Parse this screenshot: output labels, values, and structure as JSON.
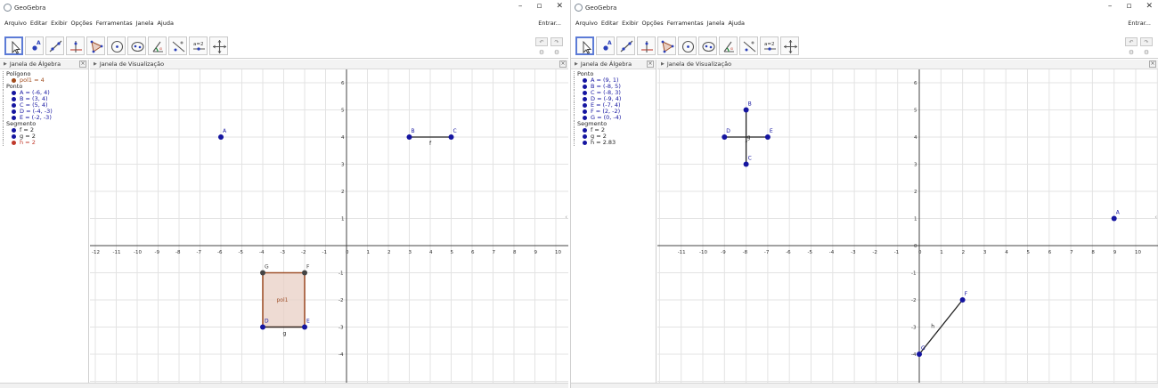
{
  "app_title": "GeoGebra",
  "window_controls": [
    "–",
    "▫",
    "✕"
  ],
  "menu": [
    "Arquivo",
    "Editar",
    "Exibir",
    "Opções",
    "Ferramentas",
    "Janela",
    "Ajuda"
  ],
  "signin": "Entrar...",
  "tools": [
    "move-tool",
    "point-tool",
    "line-tool",
    "perpendicular-tool",
    "polygon-tool",
    "circle-tool",
    "conic-tool",
    "angle-tool",
    "reflect-tool",
    "slider-tool",
    "move-graphics-tool"
  ],
  "slider_tool_label": "a=2",
  "undo_icons": [
    "undo-icon",
    "redo-icon",
    "settings-icon",
    "settings-icon"
  ],
  "left": {
    "algebra_title": "Janela de Álgebra",
    "graphics_title": "Janela de Visualização",
    "groups": [
      {
        "name": "Polígono",
        "items": [
          {
            "text": "pol1 = 4",
            "color": "#a04a1a"
          }
        ]
      },
      {
        "name": "Ponto",
        "items": [
          {
            "text": "A = (-6, 4)",
            "color": "#1515a0"
          },
          {
            "text": "B = (3, 4)",
            "color": "#1515a0"
          },
          {
            "text": "C = (5, 4)",
            "color": "#1515a0"
          },
          {
            "text": "D = (-4, -3)",
            "color": "#1515a0"
          },
          {
            "text": "E = (-2, -3)",
            "color": "#1515a0"
          }
        ]
      },
      {
        "name": "Segmento",
        "items": [
          {
            "text": "f = 2",
            "color": "#222222"
          },
          {
            "text": "g = 2",
            "color": "#222222"
          },
          {
            "text": "h = 2",
            "color": "#c0392b"
          }
        ]
      }
    ],
    "x_ticks": [
      "-12",
      "-11",
      "-10",
      "-9",
      "-8",
      "-7",
      "-6",
      "-5",
      "-4",
      "-3",
      "-2",
      "-1",
      "0",
      "1",
      "2",
      "3",
      "4",
      "5",
      "6",
      "7",
      "8",
      "9",
      "10"
    ],
    "y_ticks": [
      "6",
      "5",
      "4",
      "3",
      "2",
      "1",
      "-1",
      "-2",
      "-3",
      "-4"
    ],
    "points": [
      {
        "label": "A",
        "x": -6,
        "y": 4,
        "fill": "#1515a0"
      },
      {
        "label": "B",
        "x": 3,
        "y": 4,
        "fill": "#1515a0"
      },
      {
        "label": "C",
        "x": 5,
        "y": 4,
        "fill": "#1515a0"
      },
      {
        "label": "D",
        "x": -4,
        "y": -3,
        "fill": "#1515a0"
      },
      {
        "label": "E",
        "x": -2,
        "y": -3,
        "fill": "#1515a0"
      },
      {
        "label": "G",
        "x": -4,
        "y": -1,
        "fill": "#444444"
      },
      {
        "label": "F",
        "x": -2,
        "y": -1,
        "fill": "#444444"
      }
    ],
    "segments": [
      {
        "label": "f",
        "from": [
          3,
          4
        ],
        "to": [
          5,
          4
        ]
      },
      {
        "label": "g",
        "from": [
          -4,
          -3
        ],
        "to": [
          -2,
          -3
        ]
      }
    ],
    "polygon": {
      "label": "pol1",
      "vertices": [
        [
          -4,
          -1
        ],
        [
          -2,
          -1
        ],
        [
          -2,
          -3
        ],
        [
          -4,
          -3
        ]
      ],
      "stroke": "#a0522d",
      "fill": "#e8cfc4"
    }
  },
  "right": {
    "algebra_title": "Janela de Álgebra",
    "graphics_title": "Janela de Visualização",
    "groups": [
      {
        "name": "Ponto",
        "items": [
          {
            "text": "A = (9, 1)",
            "color": "#1515a0"
          },
          {
            "text": "B = (-8, 5)",
            "color": "#1515a0"
          },
          {
            "text": "C = (-8, 3)",
            "color": "#1515a0"
          },
          {
            "text": "D = (-9, 4)",
            "color": "#1515a0"
          },
          {
            "text": "E = (-7, 4)",
            "color": "#1515a0"
          },
          {
            "text": "F = (2, -2)",
            "color": "#1515a0"
          },
          {
            "text": "G = (0, -4)",
            "color": "#1515a0"
          }
        ]
      },
      {
        "name": "Segmento",
        "items": [
          {
            "text": "f = 2",
            "color": "#222222"
          },
          {
            "text": "g = 2",
            "color": "#222222"
          },
          {
            "text": "h = 2.83",
            "color": "#222222"
          }
        ]
      }
    ],
    "x_ticks": [
      "-11",
      "-10",
      "-9",
      "-8",
      "-7",
      "-6",
      "-5",
      "-4",
      "-3",
      "-2",
      "-1",
      "0",
      "1",
      "2",
      "3",
      "4",
      "5",
      "6",
      "7",
      "8",
      "9",
      "10"
    ],
    "y_ticks": [
      "6",
      "5",
      "4",
      "3",
      "2",
      "1",
      "0",
      "-1",
      "-2",
      "-3",
      "-4"
    ],
    "points": [
      {
        "label": "A",
        "x": 9,
        "y": 1,
        "fill": "#1515a0"
      },
      {
        "label": "B",
        "x": -8,
        "y": 5,
        "fill": "#1515a0"
      },
      {
        "label": "C",
        "x": -8,
        "y": 3,
        "fill": "#1515a0"
      },
      {
        "label": "D",
        "x": -9,
        "y": 4,
        "fill": "#1515a0"
      },
      {
        "label": "E",
        "x": -7,
        "y": 4,
        "fill": "#1515a0"
      },
      {
        "label": "F",
        "x": 2,
        "y": -2,
        "fill": "#1515a0"
      },
      {
        "label": "G",
        "x": 0,
        "y": -4,
        "fill": "#1515a0"
      }
    ],
    "segments": [
      {
        "label": "f",
        "from": [
          -9,
          4
        ],
        "to": [
          -7,
          4
        ]
      },
      {
        "label": "g",
        "from": [
          -8,
          5
        ],
        "to": [
          -8,
          3
        ]
      },
      {
        "label": "h",
        "from": [
          0,
          -4
        ],
        "to": [
          2,
          -2
        ]
      }
    ]
  }
}
